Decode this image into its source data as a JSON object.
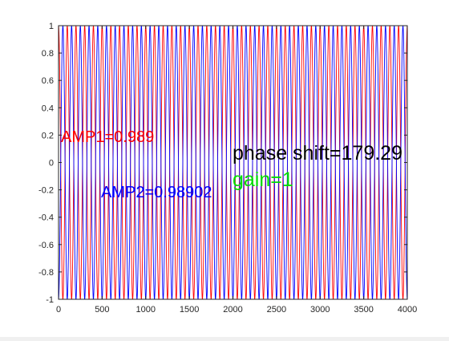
{
  "chart_data": {
    "type": "line",
    "title": "",
    "xlabel": "",
    "ylabel": "",
    "xlim": [
      0,
      4000
    ],
    "ylim": [
      -1,
      1
    ],
    "xticks": [
      0,
      500,
      1000,
      1500,
      2000,
      2500,
      3000,
      3500,
      4000
    ],
    "yticks": [
      -1,
      -0.8,
      -0.6,
      -0.4,
      -0.2,
      0,
      0.2,
      0.4,
      0.6,
      0.8,
      1
    ],
    "grid": false,
    "series": [
      {
        "color": "#ff0000",
        "amplitude": 1,
        "periods_over_range": 40,
        "phase_deg": 90
      },
      {
        "color": "#0000ff",
        "amplitude": 1,
        "periods_over_range": 40,
        "phase_deg": -90
      }
    ],
    "annotations": [
      {
        "id": "amp1",
        "text": "AMP1=0.989",
        "color": "#ff0000"
      },
      {
        "id": "amp2",
        "text": "AMP2=0.98902",
        "color": "#0000ff"
      },
      {
        "id": "phase",
        "text": "phase shift=179.29",
        "color": "#000000"
      },
      {
        "id": "gain",
        "text": "gain=1",
        "color": "#00dd00"
      }
    ]
  }
}
